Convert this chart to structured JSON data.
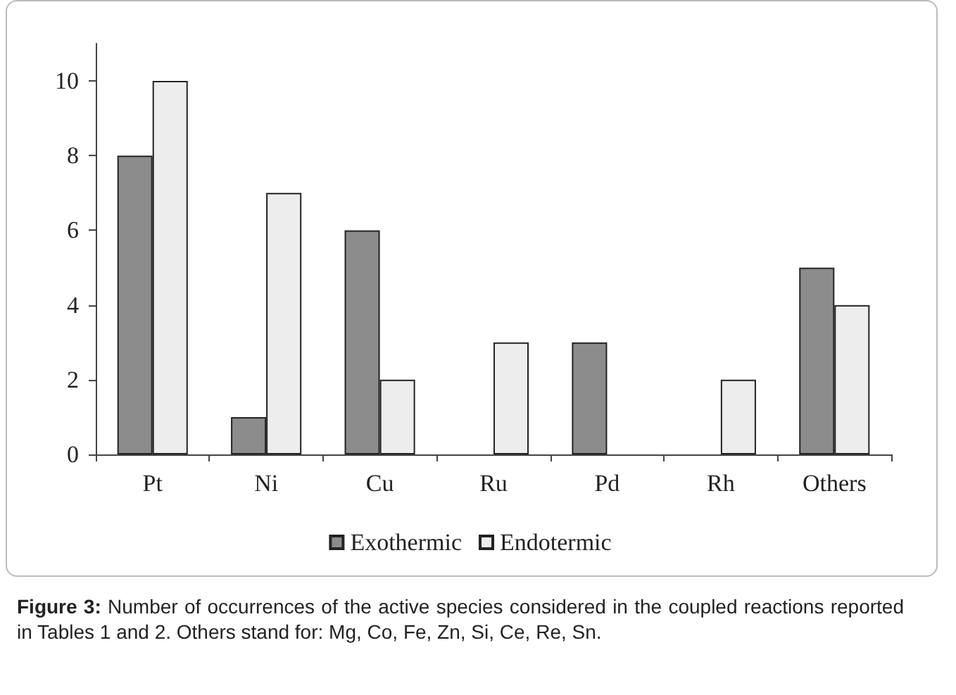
{
  "chart_data": {
    "type": "bar",
    "categories": [
      "Pt",
      "Ni",
      "Cu",
      "Ru",
      "Pd",
      "Rh",
      "Others"
    ],
    "series": [
      {
        "name": "Exothermic",
        "color": "#8c8c8c",
        "values": [
          8,
          1,
          6,
          0,
          3,
          0,
          5
        ]
      },
      {
        "name": "Endotermic",
        "color": "#ededed",
        "values": [
          10,
          7,
          2,
          3,
          0,
          2,
          4
        ]
      }
    ],
    "ylim": [
      0,
      11
    ],
    "yticks": [
      0,
      2,
      4,
      6,
      8,
      10
    ],
    "grid": false,
    "legend": "bottom",
    "annotations": [
      "Figure 3: Number of occurrences of the active species considered in the coupled reactions reported in Tables 1 and 2. Others stand for: Mg, Co, Fe, Zn, Si, Ce, Re, Sn."
    ]
  }
}
